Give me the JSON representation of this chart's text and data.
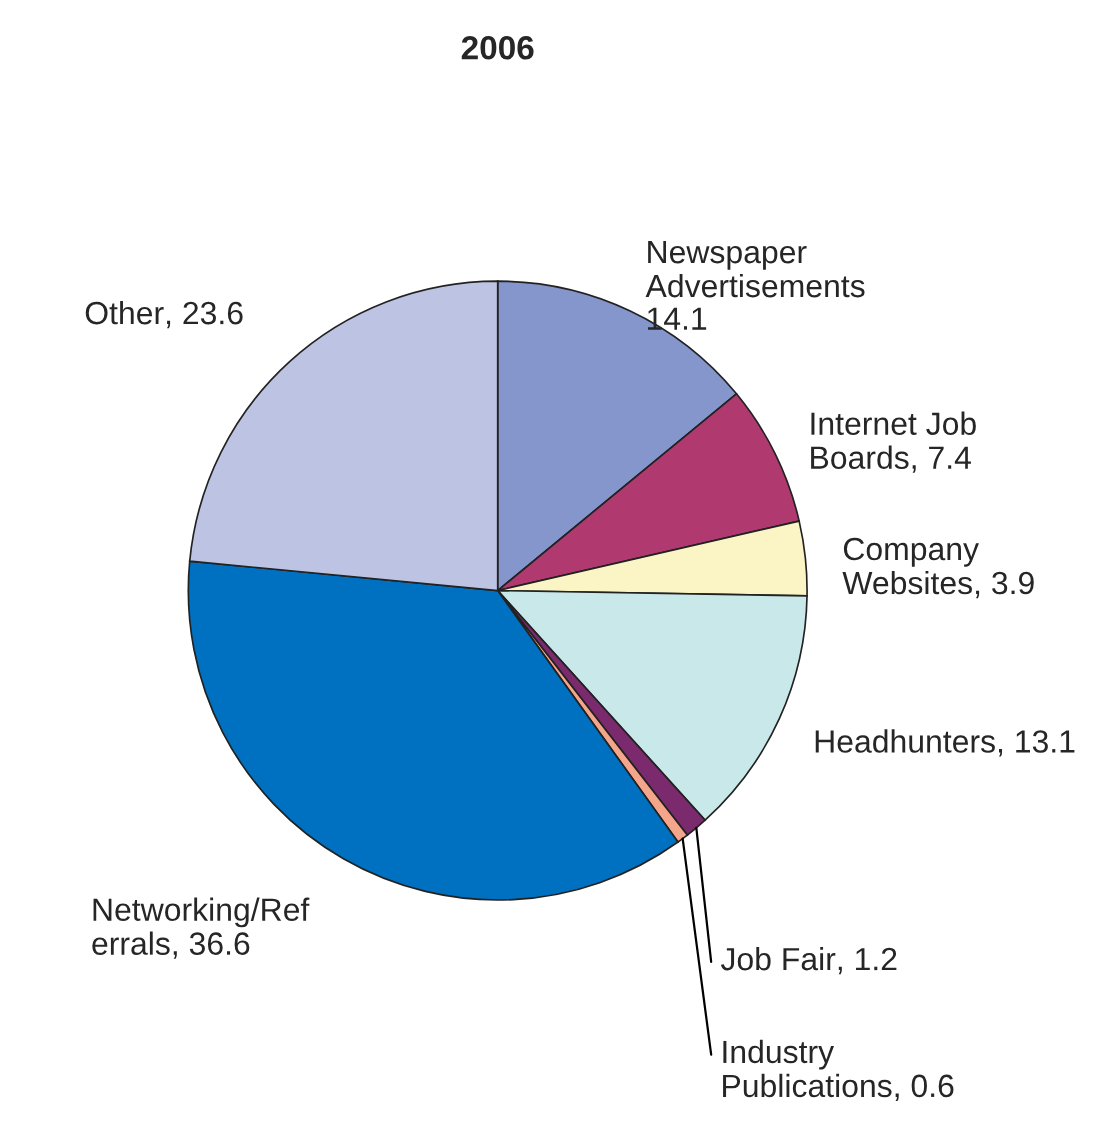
{
  "chart_data": {
    "type": "pie",
    "title": "2006",
    "categories": [
      "Newspaper Advertisements",
      "Internet Job Boards",
      "Company Websites",
      "Headhunters",
      "Job Fair",
      "Industry Publications",
      "Networking/Referrals",
      "Other"
    ],
    "values": [
      14.1,
      7.4,
      3.9,
      13.1,
      1.2,
      0.6,
      36.6,
      23.6
    ],
    "colors": [
      "#8496cc",
      "#b03a70",
      "#fbf5c6",
      "#c9e8ea",
      "#7b2a6e",
      "#f4a58a",
      "#0070c0",
      "#bcc3e3"
    ],
    "value_labels": [
      "14.1",
      ", 7.4",
      ", 3.9",
      ", 13.1",
      ", 1.2",
      ", 0.6",
      ", 36.6",
      ", 23.6"
    ]
  }
}
